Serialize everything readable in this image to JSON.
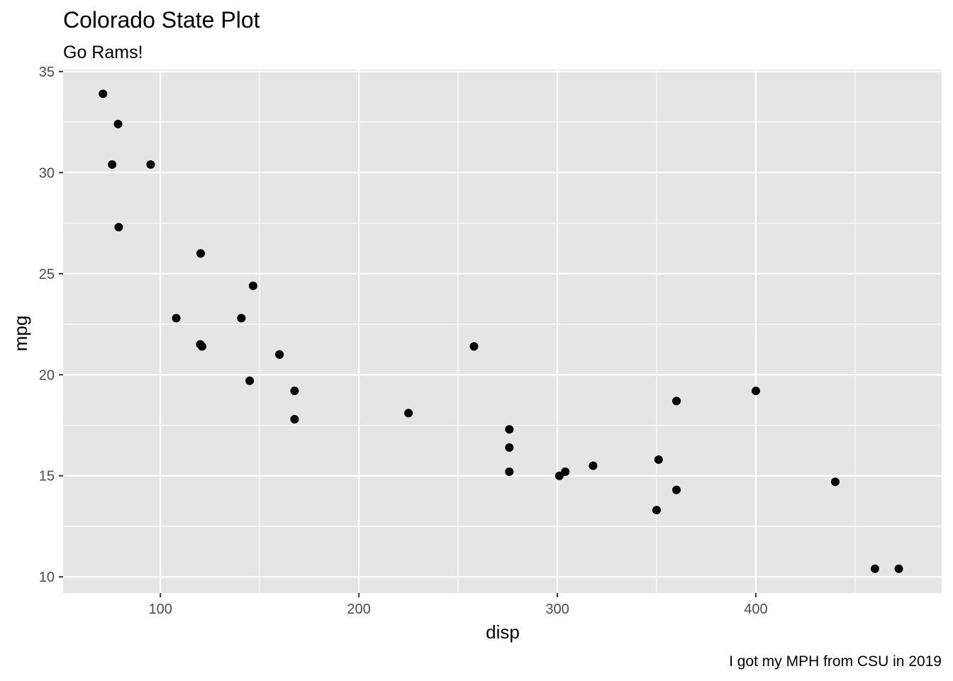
{
  "chart_data": {
    "type": "scatter",
    "title": "Colorado State Plot",
    "subtitle": "Go Rams!",
    "caption": "I got my MPH from CSU in 2019",
    "xlabel": "disp",
    "ylabel": "mpg",
    "xlim": [
      51.0,
      493.6
    ],
    "ylim": [
      9.2,
      35.1
    ],
    "x_ticks": [
      100,
      200,
      300,
      400
    ],
    "y_ticks": [
      10,
      15,
      20,
      25,
      30,
      35
    ],
    "x_minor": [
      50,
      150,
      250,
      350,
      450
    ],
    "y_minor": [
      12.5,
      17.5,
      22.5,
      27.5,
      32.5
    ],
    "grid": true,
    "panel_color": "#e5e5e5",
    "grid_color": "#ffffff",
    "point_color": "#000000",
    "points": [
      {
        "x": 160,
        "y": 21.0
      },
      {
        "x": 160,
        "y": 21.0
      },
      {
        "x": 108,
        "y": 22.8
      },
      {
        "x": 258,
        "y": 21.4
      },
      {
        "x": 360,
        "y": 18.7
      },
      {
        "x": 225,
        "y": 18.1
      },
      {
        "x": 360,
        "y": 14.3
      },
      {
        "x": 146.7,
        "y": 24.4
      },
      {
        "x": 140.8,
        "y": 22.8
      },
      {
        "x": 167.6,
        "y": 19.2
      },
      {
        "x": 167.6,
        "y": 17.8
      },
      {
        "x": 275.8,
        "y": 16.4
      },
      {
        "x": 275.8,
        "y": 17.3
      },
      {
        "x": 275.8,
        "y": 15.2
      },
      {
        "x": 472,
        "y": 10.4
      },
      {
        "x": 460,
        "y": 10.4
      },
      {
        "x": 440,
        "y": 14.7
      },
      {
        "x": 78.7,
        "y": 32.4
      },
      {
        "x": 75.7,
        "y": 30.4
      },
      {
        "x": 71.1,
        "y": 33.9
      },
      {
        "x": 120.1,
        "y": 21.5
      },
      {
        "x": 318,
        "y": 15.5
      },
      {
        "x": 304,
        "y": 15.2
      },
      {
        "x": 350,
        "y": 13.3
      },
      {
        "x": 400,
        "y": 19.2
      },
      {
        "x": 79,
        "y": 27.3
      },
      {
        "x": 120.3,
        "y": 26.0
      },
      {
        "x": 95.1,
        "y": 30.4
      },
      {
        "x": 351,
        "y": 15.8
      },
      {
        "x": 145,
        "y": 19.7
      },
      {
        "x": 301,
        "y": 15.0
      },
      {
        "x": 121,
        "y": 21.4
      }
    ]
  }
}
